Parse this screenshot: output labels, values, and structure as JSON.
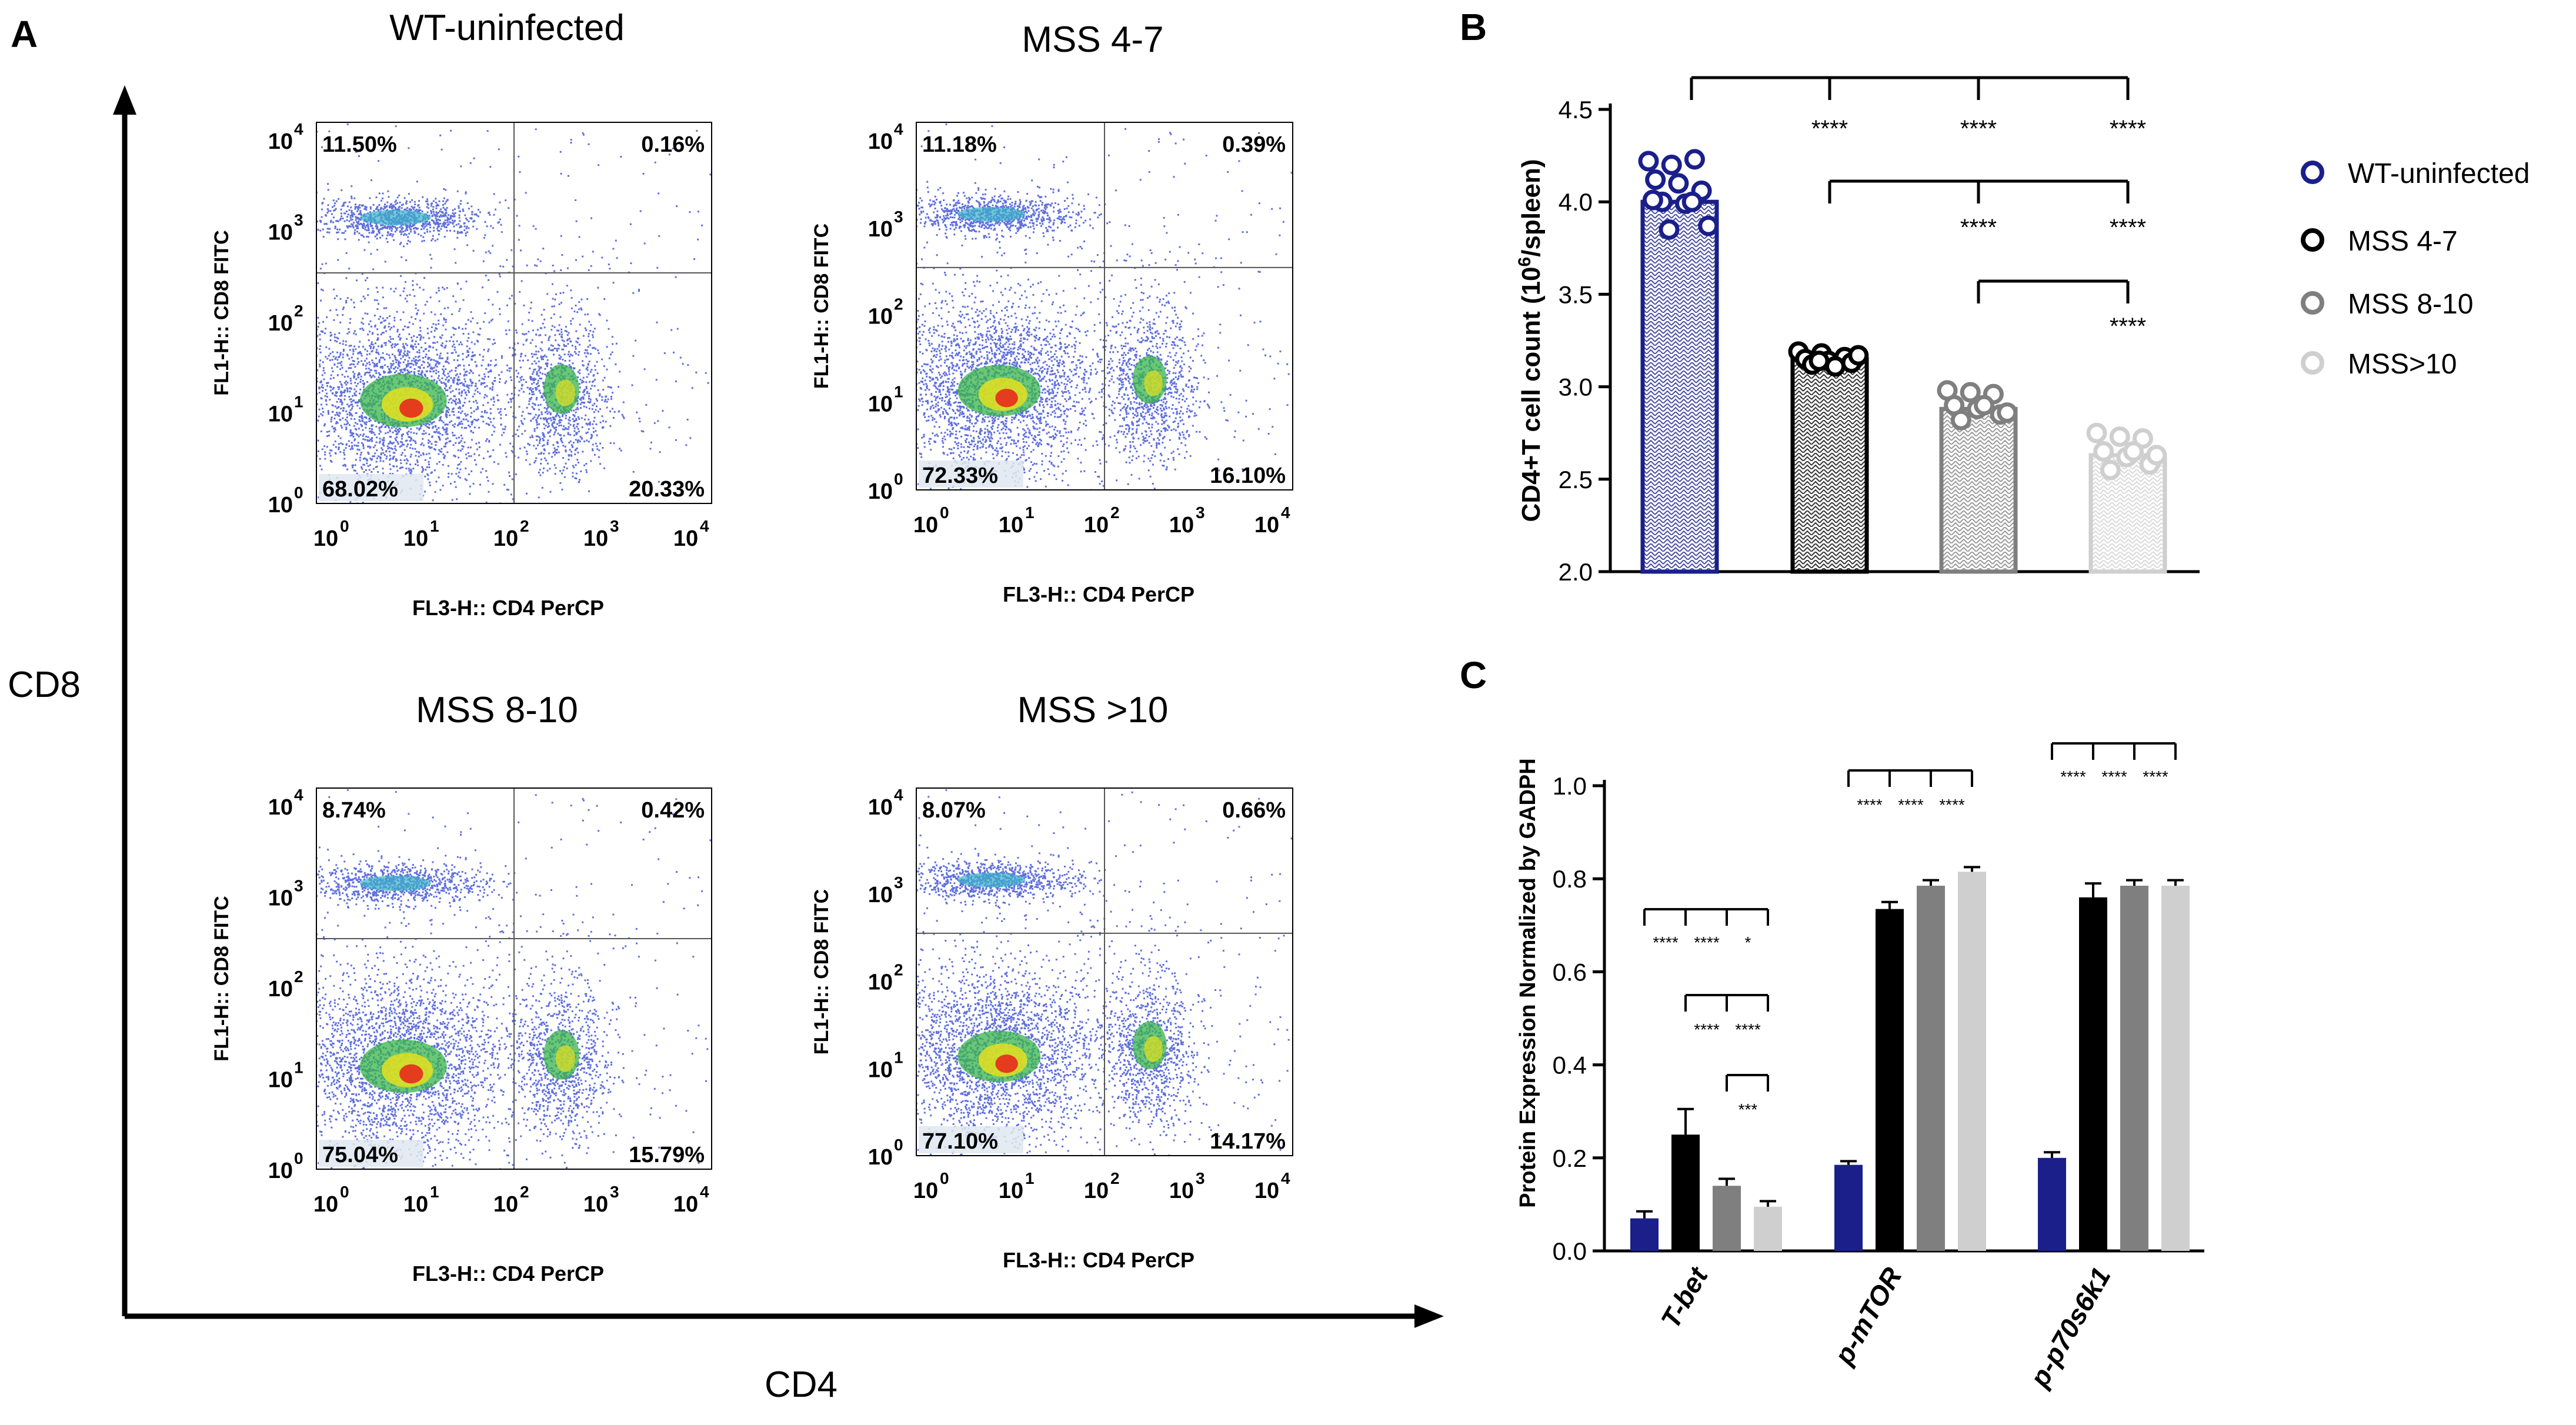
{
  "panel_labels": {
    "a": "A",
    "b": "B",
    "c": "C"
  },
  "panel_a": {
    "outer_y_label": "CD8",
    "outer_x_label": "CD4",
    "plot_y_label": "FL1-H:: CD8 FITC",
    "plot_y_label_variant": "FL1-H:: CD8 FITC",
    "plot_x_label": "FL3-H:: CD4 PerCP",
    "tick_base": "10",
    "tick_exps": [
      "0",
      "1",
      "2",
      "3",
      "4"
    ],
    "plots": [
      {
        "title": "WT-uninfected",
        "q_ul": "11.50%",
        "q_ur": "0.16%",
        "q_ll": "68.02%",
        "q_lr": "20.33%"
      },
      {
        "title": "MSS 4-7",
        "q_ul": "11.18%",
        "q_ur": "0.39%",
        "q_ll": "72.33%",
        "q_lr": "16.10%"
      },
      {
        "title": "MSS 8-10",
        "q_ul": "8.74%",
        "q_ur": "0.42%",
        "q_ll": "75.04%",
        "q_lr": "15.79%"
      },
      {
        "title": "MSS >10",
        "q_ul": "8.07%",
        "q_ur": "0.66%",
        "q_ll": "77.10%",
        "q_lr": "14.17%"
      }
    ]
  },
  "colors": {
    "wt": "#1a1f8a",
    "mss47": "#000000",
    "mss810": "#7f7f7f",
    "mss10": "#cfcfcf"
  },
  "chart_data": [
    {
      "id": "B",
      "type": "bar",
      "title": "",
      "ylabel": "CD4+T cell count (10^6/spleen)",
      "ylabel_main": "CD4+T cell count (10",
      "ylabel_sup": "6",
      "ylabel_tail": "/spleen)",
      "ylim": [
        2.0,
        4.5
      ],
      "yticks": [
        "2.0",
        "2.5",
        "3.0",
        "3.5",
        "4.0",
        "4.5"
      ],
      "categories": [
        "WT-uninfected",
        "MSS 4-7",
        "MSS 8-10",
        "MSS>10"
      ],
      "values": [
        4.0,
        3.15,
        2.88,
        2.63
      ],
      "points": [
        [
          4.22,
          4.2,
          4.23,
          4.12,
          4.1,
          4.06,
          4.0,
          3.99,
          3.87,
          3.85,
          4.0,
          4.01
        ],
        [
          3.19,
          3.18,
          3.16,
          3.15,
          3.14,
          3.13,
          3.12,
          3.11,
          3.17,
          3.14
        ],
        [
          2.98,
          2.97,
          2.96,
          2.9,
          2.88,
          2.85,
          2.82,
          2.9,
          2.86
        ],
        [
          2.75,
          2.73,
          2.72,
          2.65,
          2.62,
          2.58,
          2.55,
          2.65,
          2.63
        ]
      ],
      "legend": [
        "WT-uninfected",
        "MSS 4-7",
        "MSS 8-10",
        "MSS>10"
      ],
      "significance": [
        "****",
        "****",
        "****",
        "****",
        "****",
        "****"
      ]
    },
    {
      "id": "C",
      "type": "bar",
      "title": "",
      "ylabel": "Protein Expression Normalized by GADPH",
      "ylim": [
        0.0,
        1.0
      ],
      "yticks": [
        "0.0",
        "0.2",
        "0.4",
        "0.6",
        "0.8",
        "1.0"
      ],
      "categories": [
        "T-bet",
        "p-mTOR",
        "p-p70s6k1"
      ],
      "series": [
        {
          "name": "WT-uninfected",
          "values": [
            0.07,
            0.185,
            0.2
          ],
          "errors": [
            0.015,
            0.008,
            0.012
          ]
        },
        {
          "name": "MSS 4-7",
          "values": [
            0.25,
            0.735,
            0.76
          ],
          "errors": [
            0.055,
            0.015,
            0.03
          ]
        },
        {
          "name": "MSS 8-10",
          "values": [
            0.14,
            0.785,
            0.785
          ],
          "errors": [
            0.015,
            0.012,
            0.012
          ]
        },
        {
          "name": "MSS>10",
          "values": [
            0.095,
            0.815,
            0.785
          ],
          "errors": [
            0.012,
            0.01,
            0.012
          ]
        }
      ],
      "significance": {
        "tbet_row1": [
          "****",
          "****",
          "*"
        ],
        "tbet_row2": [
          "****",
          "****"
        ],
        "tbet_row3": [
          "***"
        ],
        "mtor": [
          "****",
          "****",
          "****"
        ],
        "p70": [
          "****",
          "****",
          "****"
        ]
      }
    }
  ]
}
